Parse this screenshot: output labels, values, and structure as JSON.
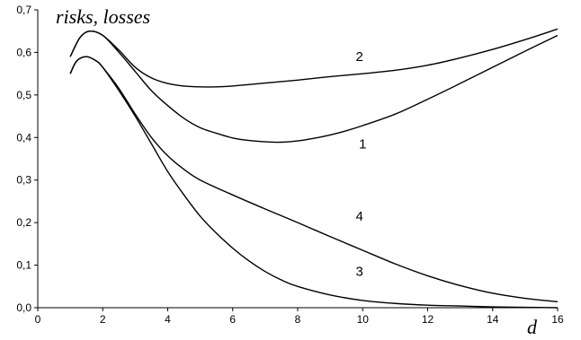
{
  "chart_data": {
    "type": "line",
    "title": "",
    "xlabel": "d",
    "ylabel": "risks, losses",
    "xlim": [
      0,
      16
    ],
    "ylim": [
      0,
      0.7
    ],
    "x_ticks": [
      "0",
      "2",
      "4",
      "6",
      "8",
      "10",
      "12",
      "14",
      "16"
    ],
    "y_ticks": [
      "0,0",
      "0,1",
      "0,2",
      "0,3",
      "0,4",
      "0,5",
      "0,6",
      "0,7"
    ],
    "grid": false,
    "series": [
      {
        "name": "1",
        "label_at": [
          10,
          0.385
        ],
        "x": [
          1,
          1.3,
          1.6,
          2,
          2.5,
          3,
          3.5,
          4,
          4.5,
          5,
          5.5,
          6,
          6.5,
          7,
          7.5,
          8,
          8.5,
          9,
          9.5,
          10,
          11,
          12,
          13,
          14,
          15,
          16
        ],
        "y": [
          0.59,
          0.635,
          0.65,
          0.64,
          0.6,
          0.555,
          0.51,
          0.475,
          0.445,
          0.423,
          0.41,
          0.399,
          0.393,
          0.39,
          0.389,
          0.392,
          0.398,
          0.406,
          0.416,
          0.428,
          0.455,
          0.49,
          0.527,
          0.565,
          0.603,
          0.64
        ]
      },
      {
        "name": "2",
        "label_at": [
          9.9,
          0.59
        ],
        "x": [
          1,
          1.3,
          1.6,
          2,
          2.5,
          3,
          3.5,
          4,
          4.5,
          5,
          5.5,
          6,
          7,
          8,
          9,
          10,
          11,
          12,
          13,
          14,
          15,
          16
        ],
        "y": [
          0.59,
          0.635,
          0.65,
          0.64,
          0.605,
          0.565,
          0.54,
          0.527,
          0.521,
          0.519,
          0.519,
          0.521,
          0.528,
          0.535,
          0.543,
          0.55,
          0.558,
          0.57,
          0.587,
          0.607,
          0.63,
          0.655
        ]
      },
      {
        "name": "3",
        "label_at": [
          9.9,
          0.085
        ],
        "x": [
          1,
          1.2,
          1.5,
          1.8,
          2,
          2.5,
          3,
          3.5,
          4,
          4.5,
          5,
          5.5,
          6,
          6.5,
          7,
          7.5,
          8,
          9,
          10,
          11,
          12,
          13,
          14,
          15,
          16
        ],
        "y": [
          0.55,
          0.58,
          0.59,
          0.58,
          0.565,
          0.51,
          0.45,
          0.385,
          0.32,
          0.265,
          0.215,
          0.175,
          0.14,
          0.11,
          0.085,
          0.065,
          0.05,
          0.03,
          0.017,
          0.01,
          0.006,
          0.004,
          0.002,
          0.001,
          0
        ]
      },
      {
        "name": "4",
        "label_at": [
          9.9,
          0.215
        ],
        "x": [
          1,
          1.2,
          1.5,
          1.8,
          2,
          2.5,
          3,
          3.5,
          4,
          4.5,
          5,
          6,
          7,
          8,
          9,
          10,
          11,
          12,
          13,
          14,
          15,
          16
        ],
        "y": [
          0.55,
          0.58,
          0.59,
          0.58,
          0.565,
          0.515,
          0.455,
          0.4,
          0.357,
          0.325,
          0.3,
          0.265,
          0.232,
          0.2,
          0.167,
          0.135,
          0.103,
          0.075,
          0.052,
          0.034,
          0.022,
          0.014
        ]
      }
    ]
  }
}
